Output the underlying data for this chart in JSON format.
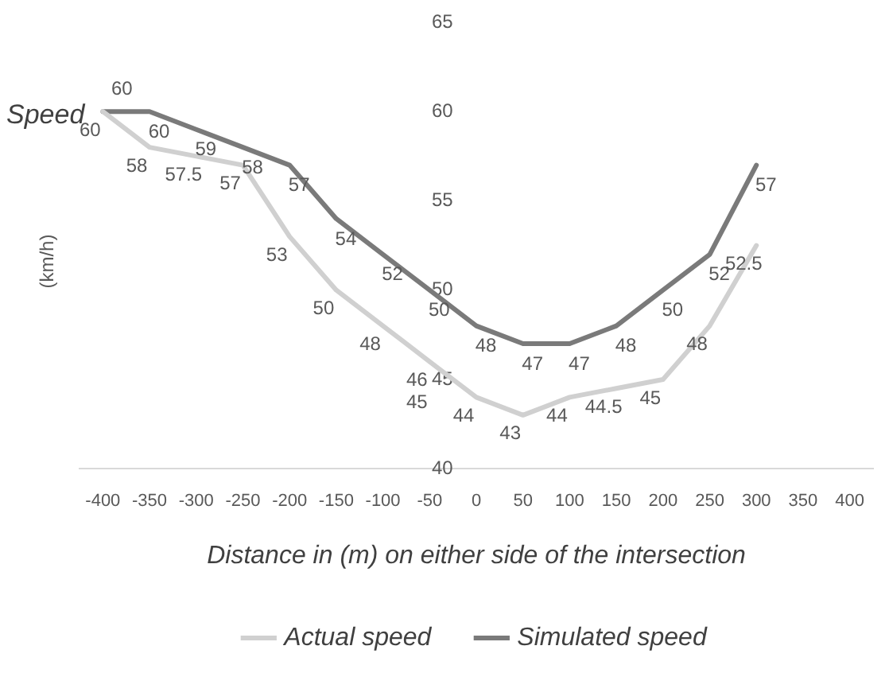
{
  "chart_data": {
    "type": "line",
    "xlabel": "Distance in (m) on either side of the intersection",
    "ylabel": "Speed",
    "categories": [
      "-400",
      "-350",
      "-300",
      "-250",
      "-200",
      "-150",
      "-100",
      "-50",
      "0",
      "50",
      "100",
      "150",
      "200",
      "250",
      "300",
      "350",
      "400"
    ],
    "series": [
      {
        "name": "Actual speed",
        "color": "#d0d0d0",
        "values": [
          60,
          58,
          57.5,
          57,
          53,
          50,
          48,
          46,
          44,
          43,
          44,
          44.5,
          45,
          48,
          52.5,
          null,
          null
        ]
      },
      {
        "name": "Simulated speed",
        "color": "#7a7a7a",
        "values": [
          60,
          60,
          59,
          58,
          57,
          54,
          52,
          50,
          48,
          47,
          47,
          48,
          50,
          52,
          57,
          null,
          null
        ]
      }
    ],
    "ylim": [
      40,
      65
    ],
    "yticks": [
      40,
      45,
      50,
      55,
      60,
      65
    ],
    "grid": false,
    "legend": "bottom",
    "marker": "none",
    "line_style": "solid",
    "data_labels": true,
    "annotations": [
      "(km/h)",
      "45"
    ]
  }
}
